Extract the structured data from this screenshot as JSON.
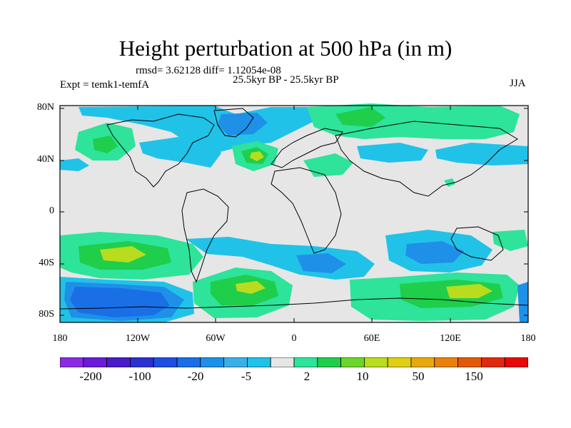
{
  "title": "Height perturbation at 500 hPa (in m)",
  "stats": "rmsd= 3.62128 diff= 1.12054e-08",
  "subtitle": "25.5kyr BP - 25.5kyr BP",
  "experiment": "Expt = temk1-temfA",
  "season": "JJA",
  "lat_labels": [
    "80N",
    "40N",
    "0",
    "40S",
    "80S"
  ],
  "lon_labels": [
    "180",
    "120W",
    "60W",
    "0",
    "60E",
    "120E",
    "180"
  ],
  "colorbar": {
    "labels": [
      "-200",
      "-100",
      "-20",
      "-5",
      "2",
      "10",
      "50",
      "150"
    ],
    "colors": [
      "#8a2be2",
      "#6a1bd6",
      "#4b1ac9",
      "#2c2ed0",
      "#1f4ee0",
      "#1a6fe6",
      "#1e90e8",
      "#3ab0e8",
      "#21c2e8",
      "#e6e6e6",
      "#2ee39a",
      "#1fce4a",
      "#6ad62a",
      "#b9dc1e",
      "#e0cf10",
      "#e8a80e",
      "#e8820c",
      "#e25a08",
      "#e02a10",
      "#e80808"
    ]
  },
  "field_colors": {
    "land_bg": "#e6e6e6",
    "cyan": "#21c2e8",
    "blue_light": "#1e90e8",
    "blue_mid": "#1a6fe6",
    "green": "#2ee39a",
    "green_dark": "#1fce4a",
    "yellow_green": "#b9dc1e"
  }
}
